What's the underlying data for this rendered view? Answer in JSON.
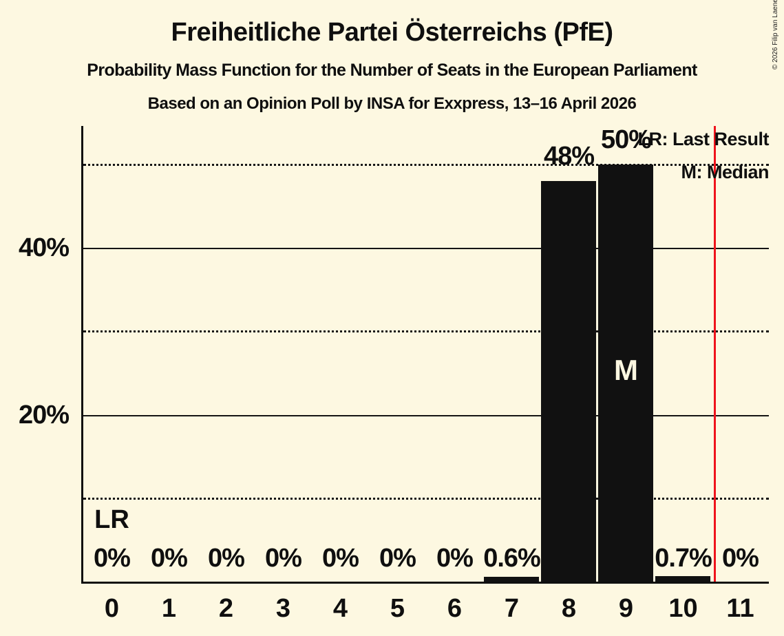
{
  "header": {
    "title": "Freiheitliche Partei Österreichs (PfE)",
    "subtitle": "Probability Mass Function for the Number of Seats in the European Parliament",
    "poll_line": "Based on an Opinion Poll by INSA for Exxpress, 13–16 April 2026"
  },
  "copyright": "© 2026 Filip van Laenen",
  "legend": {
    "last_result": "LR: Last Result",
    "median": "M: Median"
  },
  "colors": {
    "background": "#FDF8E1",
    "bar": "#111111",
    "text": "#0f0f0f",
    "red_line": "#EF131C",
    "median_letter": "#FDF8E1"
  },
  "chart_data": {
    "type": "bar",
    "title": "Freiheitliche Partei Österreichs (PfE)",
    "subtitle": "Probability Mass Function for the Number of Seats in the European Parliament",
    "source_note": "Based on an Opinion Poll by INSA for Exxpress, 13–16 April 2026",
    "categories": [
      "0",
      "1",
      "2",
      "3",
      "4",
      "5",
      "6",
      "7",
      "8",
      "9",
      "10",
      "11"
    ],
    "values_pct": [
      0,
      0,
      0,
      0,
      0,
      0,
      0,
      0.6,
      48,
      50,
      0.7,
      0
    ],
    "bar_labels": [
      "0%",
      "0%",
      "0%",
      "0%",
      "0%",
      "0%",
      "0%",
      "0.6%",
      "48%",
      "50%",
      "0.7%",
      "0%"
    ],
    "ylim_pct": [
      0,
      54.6
    ],
    "yticks": [
      {
        "pct": 20,
        "label": "20%"
      },
      {
        "pct": 40,
        "label": "40%"
      }
    ],
    "gridlines": [
      {
        "pct": 10,
        "style": "dotted"
      },
      {
        "pct": 20,
        "style": "solid"
      },
      {
        "pct": 30,
        "style": "dotted"
      },
      {
        "pct": 40,
        "style": "solid"
      },
      {
        "pct": 50,
        "style": "dotted"
      }
    ],
    "median_marker": "M",
    "median_seat_index": 9,
    "last_result_marker": "LR",
    "last_result_seat_index": 0,
    "red_line_x_seats": 10.55,
    "legend_position": "top-right",
    "grid": "horizontal",
    "bar_color": "#111111"
  }
}
